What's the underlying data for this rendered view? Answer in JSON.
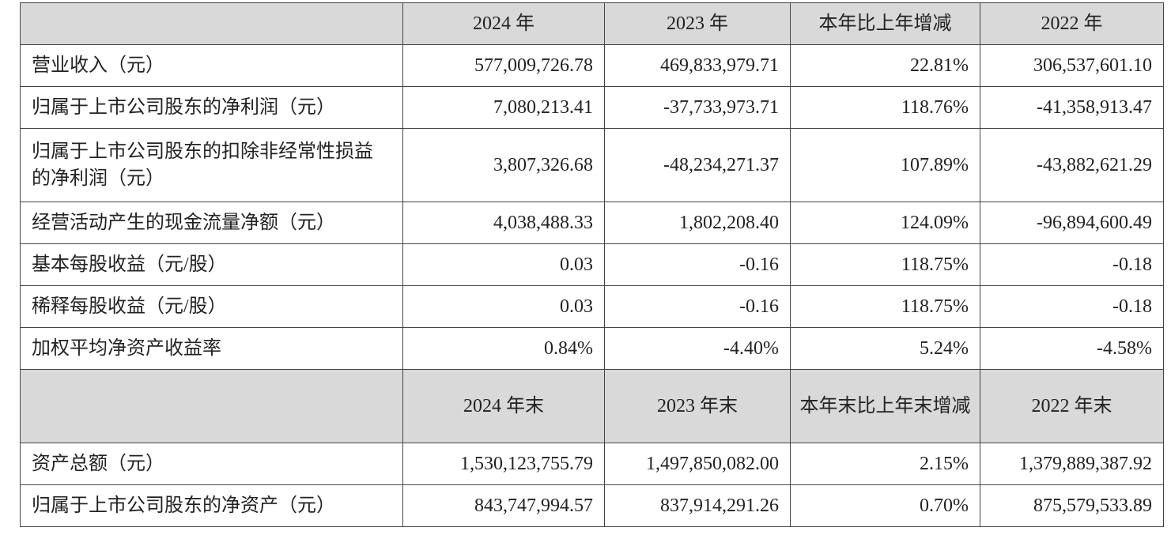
{
  "header1": [
    "",
    "2024 年",
    "2023 年",
    "本年比上年增减",
    "2022 年"
  ],
  "rows1": [
    {
      "label": "营业收入（元）",
      "v2024": "577,009,726.78",
      "v2023": "469,833,979.71",
      "change": "22.81%",
      "v2022": "306,537,601.10"
    },
    {
      "label": "归属于上市公司股东的净利润（元）",
      "v2024": "7,080,213.41",
      "v2023": "-37,733,973.71",
      "change": "118.76%",
      "v2022": "-41,358,913.47"
    },
    {
      "label": "归属于上市公司股东的扣除非经常性损益的净利润（元）",
      "v2024": "3,807,326.68",
      "v2023": "-48,234,271.37",
      "change": "107.89%",
      "v2022": "-43,882,621.29"
    },
    {
      "label": "经营活动产生的现金流量净额（元）",
      "v2024": "4,038,488.33",
      "v2023": "1,802,208.40",
      "change": "124.09%",
      "v2022": "-96,894,600.49"
    },
    {
      "label": "基本每股收益（元/股）",
      "v2024": "0.03",
      "v2023": "-0.16",
      "change": "118.75%",
      "v2022": "-0.18"
    },
    {
      "label": "稀释每股收益（元/股）",
      "v2024": "0.03",
      "v2023": "-0.16",
      "change": "118.75%",
      "v2022": "-0.18"
    },
    {
      "label": "加权平均净资产收益率",
      "v2024": "0.84%",
      "v2023": "-4.40%",
      "change": "5.24%",
      "v2022": "-4.58%"
    }
  ],
  "header2": [
    "",
    "2024 年末",
    "2023 年末",
    "本年末比上年末增减",
    "2022 年末"
  ],
  "rows2": [
    {
      "label": "资产总额（元）",
      "v2024": "1,530,123,755.79",
      "v2023": "1,497,850,082.00",
      "change": "2.15%",
      "v2022": "1,379,889,387.92"
    },
    {
      "label": "归属于上市公司股东的净资产（元）",
      "v2024": "843,747,994.57",
      "v2023": "837,914,291.26",
      "change": "0.70%",
      "v2022": "875,579,533.89"
    }
  ]
}
